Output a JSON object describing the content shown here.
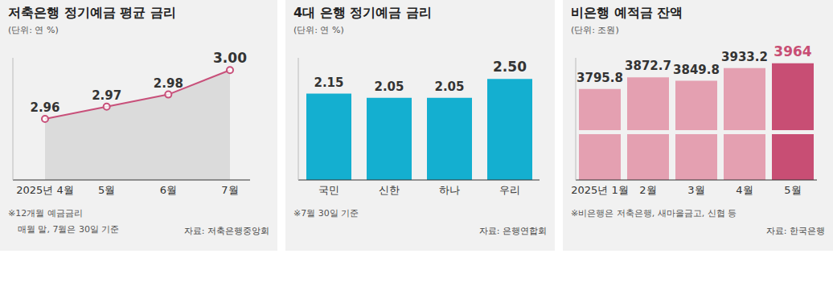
{
  "chart_data": [
    {
      "type": "area",
      "title": "저축은행 정기예금 평균 금리",
      "subtitle": "(단위: 연 %)",
      "categories": [
        "2025년 4월",
        "5월",
        "6월",
        "7월"
      ],
      "values": [
        2.96,
        2.97,
        2.98,
        3.0
      ],
      "value_labels": [
        "2.96",
        "2.97",
        "2.98",
        "3.00"
      ],
      "color": "#c8507a",
      "marker": "circle",
      "data_labels": true,
      "tick_labels": "x",
      "ylim": [
        2.91,
        3.01
      ],
      "notes": [
        "※12개월 예금금리",
        "매월 말, 7월은 30일 기준"
      ],
      "source": "자료: 저축은행중앙회"
    },
    {
      "type": "bar",
      "title": "4대 은행 정기예금 금리",
      "subtitle": "(단위: 연 %)",
      "categories": [
        "국민",
        "신한",
        "하나",
        "우리"
      ],
      "values": [
        2.15,
        2.05,
        2.05,
        2.5
      ],
      "value_labels": [
        "2.15",
        "2.05",
        "2.05",
        "2.50"
      ],
      "color": "#14afd0",
      "data_labels": true,
      "tick_labels": "x",
      "ylim": [
        0.1,
        3.0
      ],
      "notes": [
        "※7월 30일 기준"
      ],
      "source": "자료: 은행연합회"
    },
    {
      "type": "bar",
      "title": "비은행 예적금 잔액",
      "subtitle": "(단위: 조원)",
      "categories": [
        "2025년 1월",
        "2월",
        "3월",
        "4월",
        "5월"
      ],
      "values": [
        3795.8,
        3872.7,
        3849.8,
        3933.2,
        3964
      ],
      "colors": [
        "#e4a0b1",
        "#e4a0b1",
        "#e4a0b1",
        "#e4a0b1",
        "#c84e74"
      ],
      "data_labels": true,
      "tick_labels": "x",
      "ylim": [
        3200,
        4000
      ],
      "notes": [
        "※비은행은 저축은행, 새마을금고, 신협 등"
      ],
      "source": "자료: 한국은행"
    }
  ]
}
